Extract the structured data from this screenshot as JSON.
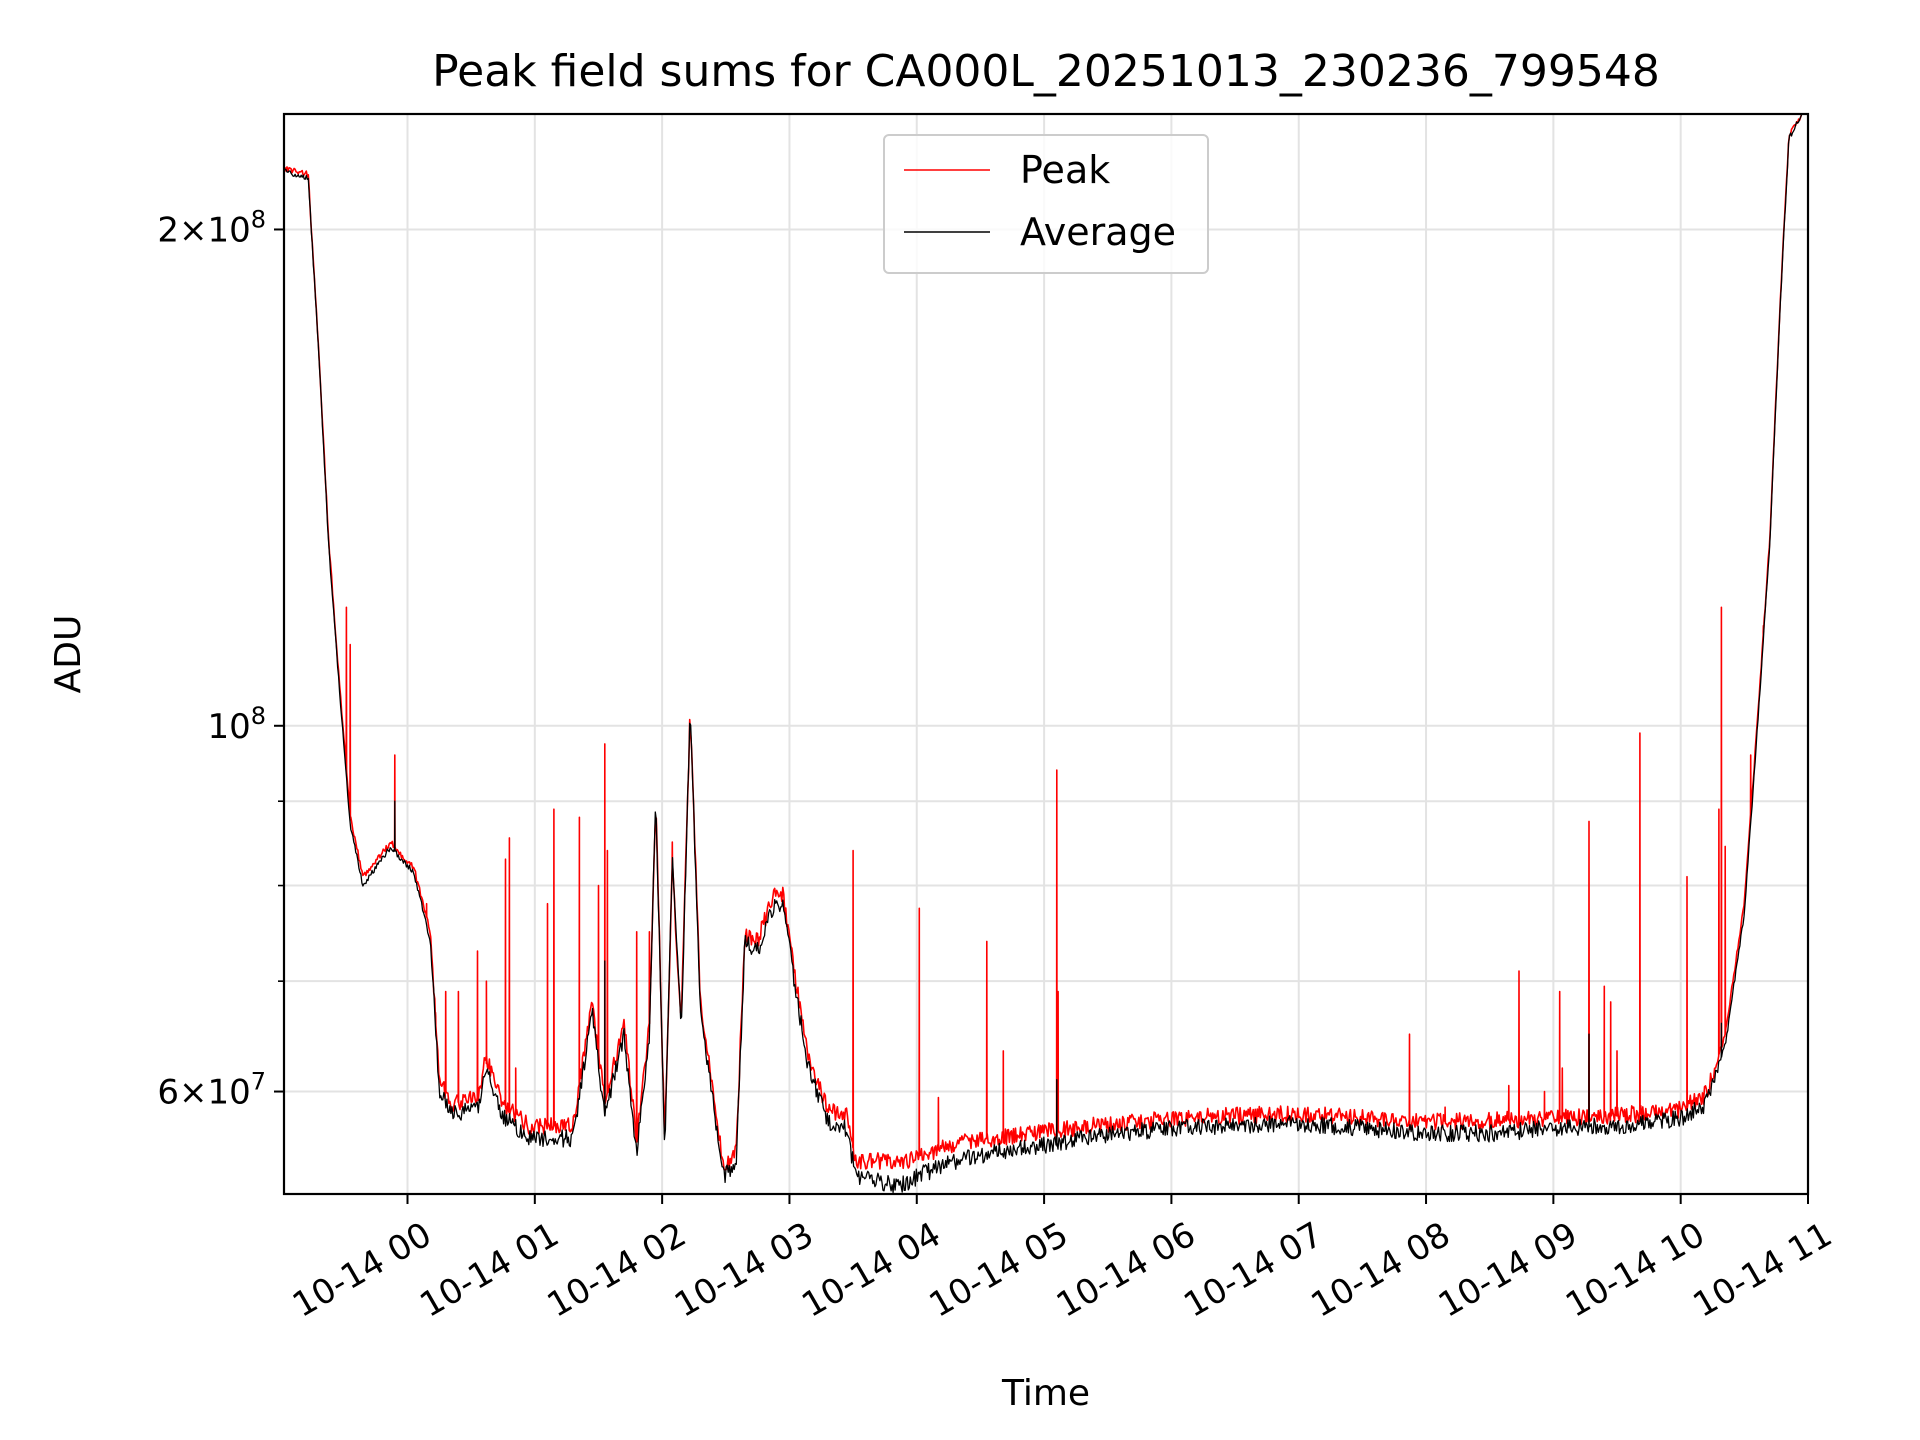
{
  "chart_data": {
    "type": "line",
    "title": "Peak field sums for CA000L_20251013_230236_799548",
    "xlabel": "Time",
    "ylabel": "ADU",
    "yscale": "log",
    "ylim": [
      52000000,
      235000000
    ],
    "xlim_hours": [
      -0.97,
      11.0
    ],
    "grid": true,
    "legend_position": "upper center",
    "x_ticks": [
      {
        "hour": 0,
        "label": "10-14 00"
      },
      {
        "hour": 1,
        "label": "10-14 01"
      },
      {
        "hour": 2,
        "label": "10-14 02"
      },
      {
        "hour": 3,
        "label": "10-14 03"
      },
      {
        "hour": 4,
        "label": "10-14 04"
      },
      {
        "hour": 5,
        "label": "10-14 05"
      },
      {
        "hour": 6,
        "label": "10-14 06"
      },
      {
        "hour": 7,
        "label": "10-14 07"
      },
      {
        "hour": 8,
        "label": "10-14 08"
      },
      {
        "hour": 9,
        "label": "10-14 09"
      },
      {
        "hour": 10,
        "label": "10-14 10"
      },
      {
        "hour": 11,
        "label": "10-14 11"
      }
    ],
    "y_major_ticks": [
      {
        "value": 60000000,
        "mantissa": "6",
        "base": "10",
        "exp": "7"
      },
      {
        "value": 100000000,
        "mantissa": "",
        "base": "10",
        "exp": "8"
      },
      {
        "value": 200000000,
        "mantissa": "2",
        "base": "10",
        "exp": "8"
      }
    ],
    "y_minor_ticks": [
      70000000,
      80000000,
      90000000
    ],
    "series": [
      {
        "name": "Peak",
        "color": "#ff0000",
        "baseline": [
          [
            -0.97,
            218000000.0
          ],
          [
            -0.78,
            216000000.0
          ],
          [
            -0.7,
            170000000.0
          ],
          [
            -0.62,
            130000000.0
          ],
          [
            -0.55,
            110000000.0
          ],
          [
            -0.45,
            88000000.0
          ],
          [
            -0.35,
            81000000.0
          ],
          [
            -0.13,
            85000000.0
          ],
          [
            -0.05,
            83500000.0
          ],
          [
            0.05,
            82000000.0
          ],
          [
            0.18,
            75000000.0
          ],
          [
            0.25,
            61000000.0
          ],
          [
            0.35,
            59000000.0
          ],
          [
            0.55,
            59500000.0
          ],
          [
            0.62,
            63000000.0
          ],
          [
            0.75,
            59000000.0
          ],
          [
            0.95,
            57200000.0
          ],
          [
            1.3,
            57200000.0
          ],
          [
            1.45,
            68000000.0
          ],
          [
            1.55,
            59000000.0
          ],
          [
            1.7,
            66000000.0
          ],
          [
            1.8,
            56000000.0
          ],
          [
            1.9,
            66000000.0
          ],
          [
            1.95,
            90000000.0
          ],
          [
            2.02,
            56000000.0
          ],
          [
            2.08,
            82000000.0
          ],
          [
            2.15,
            66000000.0
          ],
          [
            2.22,
            102000000.0
          ],
          [
            2.3,
            68000000.0
          ],
          [
            2.4,
            60000000.0
          ],
          [
            2.48,
            54000000.0
          ],
          [
            2.58,
            55000000.0
          ],
          [
            2.65,
            75000000.0
          ],
          [
            2.75,
            74000000.0
          ],
          [
            2.8,
            76000000.0
          ],
          [
            2.88,
            79000000.0
          ],
          [
            2.95,
            79000000.0
          ],
          [
            3.05,
            70000000.0
          ],
          [
            3.15,
            63000000.0
          ],
          [
            3.3,
            58500000.0
          ],
          [
            3.45,
            58000000.0
          ],
          [
            3.52,
            54500000.0
          ],
          [
            3.7,
            54500000.0
          ],
          [
            3.85,
            54200000.0
          ],
          [
            4.05,
            55000000.0
          ],
          [
            4.4,
            56000000.0
          ],
          [
            4.9,
            56600000.0
          ],
          [
            5.4,
            57200000.0
          ],
          [
            6.0,
            57800000.0
          ],
          [
            6.5,
            58000000.0
          ],
          [
            7.0,
            58200000.0
          ],
          [
            7.5,
            57800000.0
          ],
          [
            8.0,
            57500000.0
          ],
          [
            8.5,
            57600000.0
          ],
          [
            9.0,
            57800000.0
          ],
          [
            9.5,
            58000000.0
          ],
          [
            10.0,
            58500000.0
          ],
          [
            10.2,
            59800000.0
          ],
          [
            10.35,
            65000000.0
          ],
          [
            10.5,
            78000000.0
          ],
          [
            10.6,
            100000000.0
          ],
          [
            10.7,
            130000000.0
          ],
          [
            10.78,
            180000000.0
          ],
          [
            10.85,
            228000000.0
          ],
          [
            10.95,
            235000000.0
          ]
        ],
        "spikes": [
          [
            -0.48,
            118000000.0
          ],
          [
            -0.45,
            112000000.0
          ],
          [
            -0.1,
            96000000.0
          ],
          [
            0.15,
            78000000.0
          ],
          [
            0.22,
            67000000.0
          ],
          [
            0.3,
            69000000.0
          ],
          [
            0.4,
            69000000.0
          ],
          [
            0.55,
            73000000.0
          ],
          [
            0.62,
            70000000.0
          ],
          [
            0.77,
            83000000.0
          ],
          [
            0.8,
            85500000.0
          ],
          [
            0.85,
            62000000.0
          ],
          [
            1.1,
            78000000.0
          ],
          [
            1.15,
            89000000.0
          ],
          [
            1.35,
            88000000.0
          ],
          [
            1.5,
            80000000.0
          ],
          [
            1.55,
            97500000.0
          ],
          [
            1.57,
            84000000.0
          ],
          [
            1.8,
            75000000.0
          ],
          [
            1.9,
            75000000.0
          ],
          [
            2.08,
            85000000.0
          ],
          [
            3.5,
            84000000.0
          ],
          [
            4.02,
            77500000.0
          ],
          [
            4.17,
            59500000.0
          ],
          [
            4.55,
            74000000.0
          ],
          [
            4.68,
            63500000.0
          ],
          [
            5.1,
            94000000.0
          ],
          [
            5.11,
            69000000.0
          ],
          [
            7.87,
            65000000.0
          ],
          [
            8.15,
            58700000.0
          ],
          [
            8.65,
            60500000.0
          ],
          [
            8.73,
            71000000.0
          ],
          [
            8.93,
            60000000.0
          ],
          [
            9.05,
            69000000.0
          ],
          [
            9.07,
            62000000.0
          ],
          [
            9.28,
            87500000.0
          ],
          [
            9.4,
            69500000.0
          ],
          [
            9.45,
            68000000.0
          ],
          [
            9.5,
            63500000.0
          ],
          [
            9.68,
            99000000.0
          ],
          [
            10.05,
            81000000.0
          ],
          [
            10.3,
            89000000.0
          ],
          [
            10.32,
            118000000.0
          ],
          [
            10.35,
            84500000.0
          ],
          [
            10.55,
            96000000.0
          ],
          [
            10.65,
            115000000.0
          ]
        ]
      },
      {
        "name": "Average",
        "color": "#000000",
        "baseline": [
          [
            -0.97,
            217000000.0
          ],
          [
            -0.78,
            215000000.0
          ],
          [
            -0.7,
            170000000.0
          ],
          [
            -0.62,
            129000000.0
          ],
          [
            -0.55,
            109000000.0
          ],
          [
            -0.45,
            87000000.0
          ],
          [
            -0.35,
            80000000.0
          ],
          [
            -0.13,
            84500000.0
          ],
          [
            -0.05,
            83000000.0
          ],
          [
            0.05,
            81500000.0
          ],
          [
            0.18,
            74000000.0
          ],
          [
            0.25,
            60000000.0
          ],
          [
            0.35,
            58200000.0
          ],
          [
            0.55,
            58500000.0
          ],
          [
            0.62,
            62000000.0
          ],
          [
            0.75,
            58000000.0
          ],
          [
            0.95,
            56200000.0
          ],
          [
            1.3,
            56200000.0
          ],
          [
            1.45,
            67000000.0
          ],
          [
            1.55,
            58000000.0
          ],
          [
            1.7,
            65000000.0
          ],
          [
            1.8,
            55000000.0
          ],
          [
            1.9,
            65000000.0
          ],
          [
            1.95,
            91000000.0
          ],
          [
            2.02,
            55000000.0
          ],
          [
            2.08,
            83000000.0
          ],
          [
            2.15,
            65000000.0
          ],
          [
            2.22,
            103000000.0
          ],
          [
            2.3,
            67000000.0
          ],
          [
            2.4,
            59000000.0
          ],
          [
            2.48,
            53300000.0
          ],
          [
            2.58,
            54000000.0
          ],
          [
            2.65,
            74000000.0
          ],
          [
            2.75,
            73000000.0
          ],
          [
            2.8,
            75000000.0
          ],
          [
            2.88,
            78000000.0
          ],
          [
            2.95,
            78000000.0
          ],
          [
            3.05,
            69000000.0
          ],
          [
            3.15,
            62000000.0
          ],
          [
            3.3,
            57500000.0
          ],
          [
            3.45,
            57000000.0
          ],
          [
            3.52,
            53300000.0
          ],
          [
            3.7,
            53000000.0
          ],
          [
            3.85,
            52500000.0
          ],
          [
            4.05,
            53500000.0
          ],
          [
            4.4,
            54800000.0
          ],
          [
            4.9,
            55500000.0
          ],
          [
            5.4,
            56400000.0
          ],
          [
            6.0,
            57000000.0
          ],
          [
            6.5,
            57200000.0
          ],
          [
            7.0,
            57400000.0
          ],
          [
            7.5,
            57000000.0
          ],
          [
            8.0,
            56600000.0
          ],
          [
            8.5,
            56600000.0
          ],
          [
            9.0,
            57000000.0
          ],
          [
            9.5,
            57200000.0
          ],
          [
            10.0,
            57800000.0
          ],
          [
            10.2,
            59000000.0
          ],
          [
            10.35,
            64000000.0
          ],
          [
            10.5,
            77000000.0
          ],
          [
            10.6,
            99000000.0
          ],
          [
            10.7,
            129000000.0
          ],
          [
            10.78,
            179000000.0
          ],
          [
            10.85,
            227000000.0
          ],
          [
            10.95,
            235000000.0
          ]
        ],
        "spikes": [
          [
            -0.1,
            90000000.0
          ],
          [
            1.55,
            72000000.0
          ],
          [
            5.1,
            61000000.0
          ],
          [
            9.28,
            65000000.0
          ],
          [
            10.32,
            66000000.0
          ]
        ]
      }
    ]
  }
}
